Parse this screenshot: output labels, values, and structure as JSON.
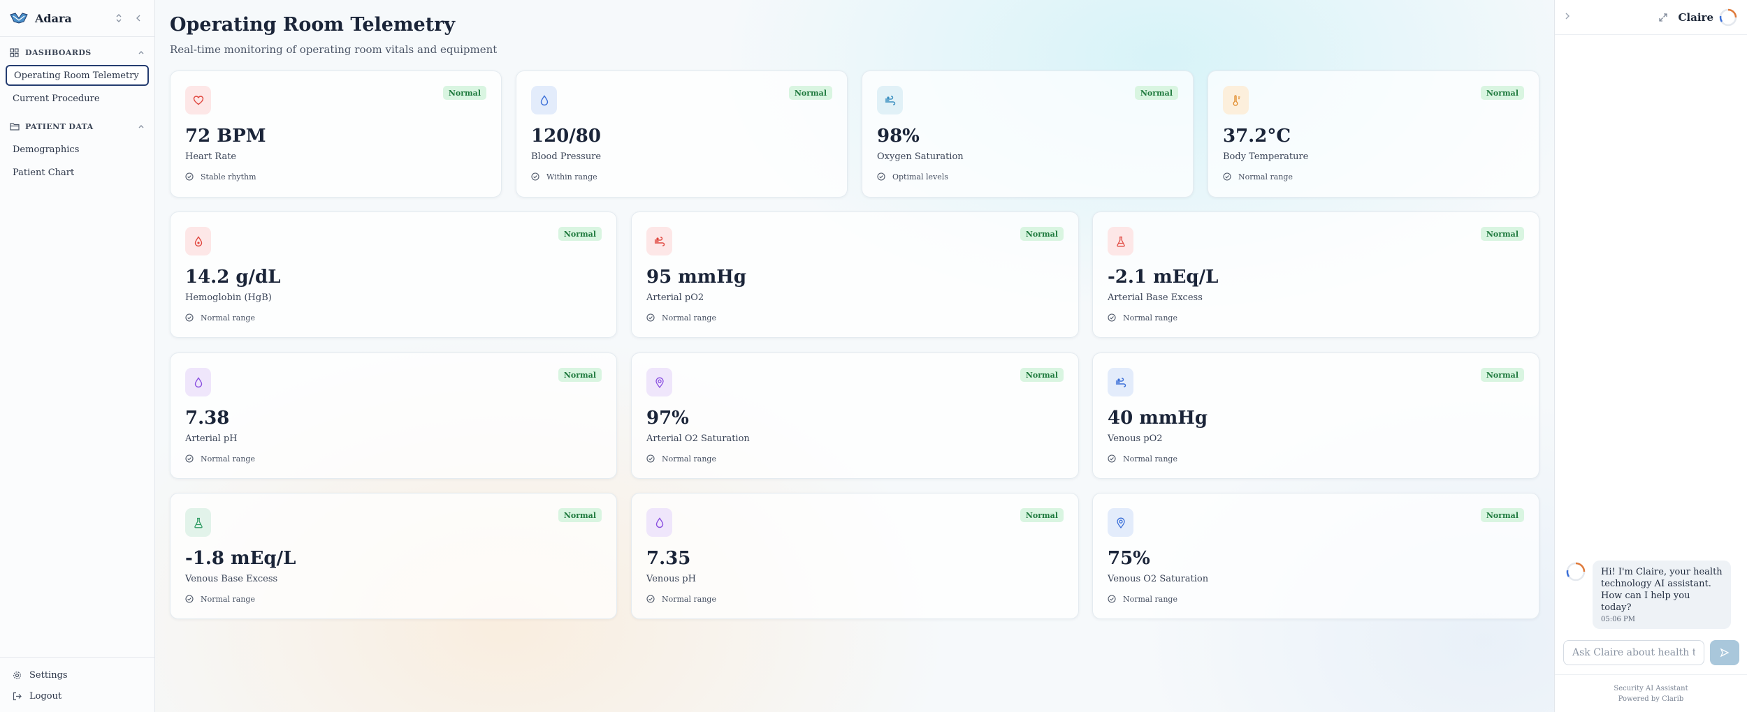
{
  "sidebar": {
    "brand": "Adara",
    "sections": [
      {
        "title": "DASHBOARDS",
        "items": [
          {
            "label": "Operating Room Telemetry",
            "active": true
          },
          {
            "label": "Current Procedure"
          }
        ]
      },
      {
        "title": "PATIENT DATA",
        "items": [
          {
            "label": "Demographics"
          },
          {
            "label": "Patient Chart"
          }
        ]
      }
    ],
    "footer": [
      {
        "label": "Settings",
        "icon": "gear-icon"
      },
      {
        "label": "Logout",
        "icon": "logout-icon"
      }
    ]
  },
  "header": {
    "title": "Operating Room Telemetry",
    "subtitle": "Real-time monitoring of operating room vitals and equipment"
  },
  "cards": [
    {
      "value": "72 BPM",
      "label": "Heart Rate",
      "note": "Stable rhythm",
      "status": "Normal",
      "icon": "heart-icon",
      "icon_bg": "#fde7e7",
      "icon_color": "#e0473f"
    },
    {
      "value": "120/80",
      "label": "Blood Pressure",
      "note": "Within range",
      "status": "Normal",
      "icon": "droplet-icon",
      "icon_bg": "#e3ecfb",
      "icon_color": "#3b6fd8"
    },
    {
      "value": "98%",
      "label": "Oxygen Saturation",
      "note": "Optimal levels",
      "status": "Normal",
      "icon": "wind-icon",
      "icon_bg": "#e1f1f7",
      "icon_color": "#3a8fc0"
    },
    {
      "value": "37.2°C",
      "label": "Body Temperature",
      "note": "Normal range",
      "status": "Normal",
      "icon": "thermometer-icon",
      "icon_bg": "#fcefdc",
      "icon_color": "#e08a2a"
    },
    {
      "value": "14.2 g/dL",
      "label": "Hemoglobin (HgB)",
      "note": "Normal range",
      "status": "Normal",
      "icon": "blood-drop-icon",
      "icon_bg": "#fde7e7",
      "icon_color": "#e0473f"
    },
    {
      "value": "95 mmHg",
      "label": "Arterial pO2",
      "note": "Normal range",
      "status": "Normal",
      "icon": "wind-icon",
      "icon_bg": "#fde7e7",
      "icon_color": "#e0473f"
    },
    {
      "value": "-2.1 mEq/L",
      "label": "Arterial Base Excess",
      "note": "Normal range",
      "status": "Normal",
      "icon": "flask-icon",
      "icon_bg": "#fde7e7",
      "icon_color": "#e0473f"
    },
    {
      "value": "7.38",
      "label": "Arterial pH",
      "note": "Normal range",
      "status": "Normal",
      "icon": "droplet-icon",
      "icon_bg": "#efe6fb",
      "icon_color": "#8a4fe0"
    },
    {
      "value": "97%",
      "label": "Arterial O2 Saturation",
      "note": "Normal range",
      "status": "Normal",
      "icon": "pin-icon",
      "icon_bg": "#efe6fb",
      "icon_color": "#8a4fe0"
    },
    {
      "value": "40 mmHg",
      "label": "Venous pO2",
      "note": "Normal range",
      "status": "Normal",
      "icon": "wind-icon",
      "icon_bg": "#e3ecfb",
      "icon_color": "#3b6fd8"
    },
    {
      "value": "-1.8 mEq/L",
      "label": "Venous Base Excess",
      "note": "Normal range",
      "status": "Normal",
      "icon": "flask-icon",
      "icon_bg": "#e2f3ea",
      "icon_color": "#2f9c63"
    },
    {
      "value": "7.35",
      "label": "Venous pH",
      "note": "Normal range",
      "status": "Normal",
      "icon": "droplet-icon",
      "icon_bg": "#efe6fb",
      "icon_color": "#8a4fe0"
    },
    {
      "value": "75%",
      "label": "Venous O2 Saturation",
      "note": "Normal range",
      "status": "Normal",
      "icon": "pin-icon",
      "icon_bg": "#e3ecfb",
      "icon_color": "#3b6fd8"
    }
  ],
  "chat": {
    "name": "Claire",
    "message": "Hi! I'm Claire, your health technology AI assistant. How can I help you today?",
    "time": "05:06 PM",
    "input_placeholder": "Ask Claire about health tech...",
    "footer_line1": "Security AI Assistant",
    "footer_line2": "Powered by Clarib"
  }
}
